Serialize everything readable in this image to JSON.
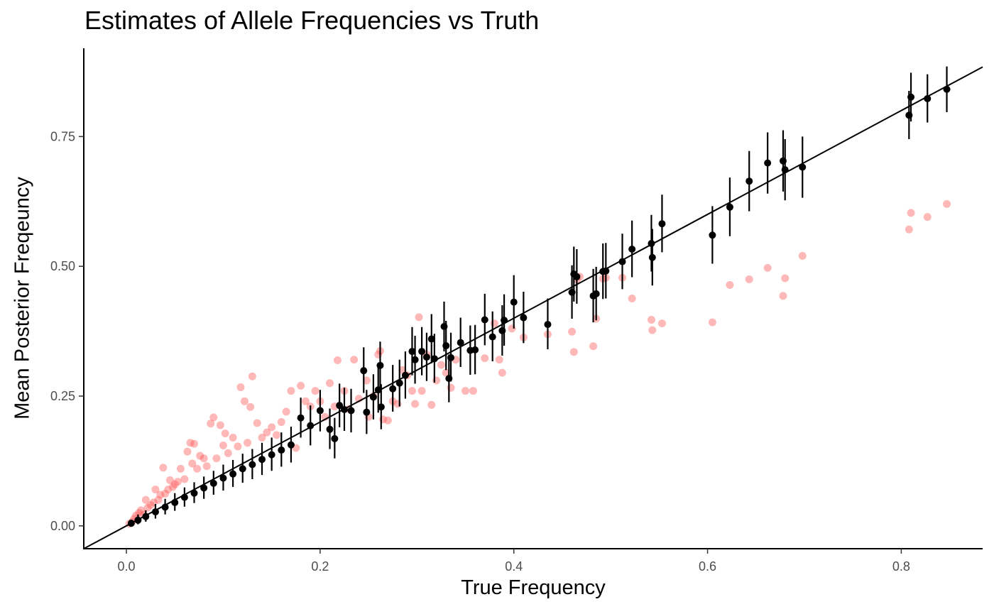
{
  "chart_data": {
    "type": "scatter",
    "title": "Estimates of Allele Frequencies vs Truth",
    "xlabel": "True Frequency",
    "ylabel": "Mean Posterior Freqeuncy",
    "xlim": [
      -0.044,
      0.884
    ],
    "ylim": [
      -0.044,
      0.92
    ],
    "x_ticks": [
      "0.0",
      "0.2",
      "0.4",
      "0.6",
      "0.8"
    ],
    "y_ticks": [
      "0.00",
      "0.25",
      "0.50",
      "0.75"
    ],
    "grid": false,
    "legend": "none",
    "reference_line": {
      "type": "identity",
      "slope": 1,
      "intercept": 0,
      "color": "#000000"
    },
    "colors": {
      "posterior_mean": "#000000",
      "naive_estimate": "#ff4d4d"
    },
    "series": [
      {
        "role": "posterior_mean_with_interval",
        "color": "#000000",
        "points": [
          [
            0.005,
            0.005,
            0.0,
            0.012
          ],
          [
            0.012,
            0.011,
            0.003,
            0.022
          ],
          [
            0.02,
            0.018,
            0.008,
            0.03
          ],
          [
            0.03,
            0.027,
            0.014,
            0.042
          ],
          [
            0.04,
            0.036,
            0.022,
            0.052
          ],
          [
            0.05,
            0.045,
            0.029,
            0.063
          ],
          [
            0.06,
            0.055,
            0.037,
            0.074
          ],
          [
            0.07,
            0.063,
            0.044,
            0.084
          ],
          [
            0.08,
            0.073,
            0.052,
            0.095
          ],
          [
            0.09,
            0.082,
            0.06,
            0.106
          ],
          [
            0.1,
            0.092,
            0.068,
            0.118
          ],
          [
            0.11,
            0.1,
            0.075,
            0.127
          ],
          [
            0.12,
            0.11,
            0.083,
            0.139
          ],
          [
            0.13,
            0.118,
            0.09,
            0.148
          ],
          [
            0.14,
            0.128,
            0.098,
            0.16
          ],
          [
            0.15,
            0.137,
            0.106,
            0.17
          ],
          [
            0.16,
            0.146,
            0.114,
            0.18
          ],
          [
            0.17,
            0.156,
            0.122,
            0.191
          ],
          [
            0.18,
            0.208,
            0.17,
            0.247
          ],
          [
            0.19,
            0.193,
            0.155,
            0.232
          ],
          [
            0.2,
            0.222,
            0.182,
            0.262
          ],
          [
            0.21,
            0.186,
            0.148,
            0.226
          ],
          [
            0.215,
            0.168,
            0.13,
            0.208
          ],
          [
            0.22,
            0.232,
            0.19,
            0.274
          ],
          [
            0.225,
            0.224,
            0.183,
            0.266
          ],
          [
            0.232,
            0.222,
            0.18,
            0.264
          ],
          [
            0.245,
            0.299,
            0.256,
            0.344
          ],
          [
            0.248,
            0.219,
            0.177,
            0.262
          ],
          [
            0.255,
            0.248,
            0.205,
            0.292
          ],
          [
            0.26,
            0.262,
            0.218,
            0.306
          ],
          [
            0.262,
            0.309,
            0.264,
            0.355
          ],
          [
            0.263,
            0.229,
            0.186,
            0.273
          ],
          [
            0.275,
            0.264,
            0.22,
            0.31
          ],
          [
            0.282,
            0.275,
            0.23,
            0.32
          ],
          [
            0.288,
            0.29,
            0.245,
            0.336
          ],
          [
            0.295,
            0.336,
            0.29,
            0.383
          ],
          [
            0.298,
            0.32,
            0.274,
            0.366
          ],
          [
            0.305,
            0.336,
            0.29,
            0.383
          ],
          [
            0.31,
            0.325,
            0.279,
            0.372
          ],
          [
            0.315,
            0.36,
            0.313,
            0.408
          ],
          [
            0.318,
            0.322,
            0.276,
            0.37
          ],
          [
            0.328,
            0.384,
            0.336,
            0.432
          ],
          [
            0.33,
            0.347,
            0.3,
            0.395
          ],
          [
            0.333,
            0.284,
            0.238,
            0.33
          ],
          [
            0.335,
            0.324,
            0.278,
            0.372
          ],
          [
            0.345,
            0.353,
            0.306,
            0.401
          ],
          [
            0.355,
            0.338,
            0.291,
            0.386
          ],
          [
            0.36,
            0.339,
            0.292,
            0.387
          ],
          [
            0.37,
            0.397,
            0.348,
            0.447
          ],
          [
            0.378,
            0.364,
            0.317,
            0.413
          ],
          [
            0.388,
            0.376,
            0.328,
            0.425
          ],
          [
            0.39,
            0.396,
            0.347,
            0.446
          ],
          [
            0.4,
            0.431,
            0.38,
            0.483
          ],
          [
            0.41,
            0.401,
            0.352,
            0.451
          ],
          [
            0.435,
            0.388,
            0.34,
            0.438
          ],
          [
            0.46,
            0.45,
            0.399,
            0.502
          ],
          [
            0.462,
            0.485,
            0.432,
            0.538
          ],
          [
            0.465,
            0.48,
            0.428,
            0.533
          ],
          [
            0.482,
            0.443,
            0.392,
            0.495
          ],
          [
            0.485,
            0.447,
            0.396,
            0.499
          ],
          [
            0.492,
            0.49,
            0.437,
            0.544
          ],
          [
            0.495,
            0.491,
            0.438,
            0.545
          ],
          [
            0.512,
            0.509,
            0.456,
            0.563
          ],
          [
            0.522,
            0.533,
            0.479,
            0.588
          ],
          [
            0.542,
            0.544,
            0.49,
            0.599
          ],
          [
            0.543,
            0.517,
            0.463,
            0.572
          ],
          [
            0.553,
            0.582,
            0.527,
            0.638
          ],
          [
            0.605,
            0.56,
            0.505,
            0.616
          ],
          [
            0.623,
            0.614,
            0.558,
            0.671
          ],
          [
            0.643,
            0.664,
            0.606,
            0.722
          ],
          [
            0.662,
            0.699,
            0.64,
            0.758
          ],
          [
            0.678,
            0.703,
            0.644,
            0.762
          ],
          [
            0.68,
            0.686,
            0.627,
            0.745
          ],
          [
            0.698,
            0.691,
            0.632,
            0.75
          ],
          [
            0.808,
            0.791,
            0.745,
            0.838
          ],
          [
            0.81,
            0.826,
            0.779,
            0.873
          ],
          [
            0.827,
            0.823,
            0.777,
            0.87
          ],
          [
            0.847,
            0.841,
            0.797,
            0.885
          ]
        ]
      },
      {
        "role": "naive_estimate",
        "color": "#ff4d4d",
        "opacity": 0.4,
        "points": [
          [
            0.003,
            0.004
          ],
          [
            0.006,
            0.008
          ],
          [
            0.008,
            0.014
          ],
          [
            0.01,
            0.02
          ],
          [
            0.013,
            0.025
          ],
          [
            0.015,
            0.03
          ],
          [
            0.018,
            0.022
          ],
          [
            0.02,
            0.05
          ],
          [
            0.022,
            0.035
          ],
          [
            0.025,
            0.04
          ],
          [
            0.028,
            0.045
          ],
          [
            0.03,
            0.07
          ],
          [
            0.033,
            0.05
          ],
          [
            0.035,
            0.06
          ],
          [
            0.038,
            0.112
          ],
          [
            0.04,
            0.062
          ],
          [
            0.043,
            0.07
          ],
          [
            0.045,
            0.088
          ],
          [
            0.048,
            0.075
          ],
          [
            0.05,
            0.08
          ],
          [
            0.053,
            0.085
          ],
          [
            0.056,
            0.11
          ],
          [
            0.06,
            0.09
          ],
          [
            0.063,
            0.143
          ],
          [
            0.066,
            0.16
          ],
          [
            0.068,
            0.12
          ],
          [
            0.07,
            0.158
          ],
          [
            0.073,
            0.11
          ],
          [
            0.076,
            0.135
          ],
          [
            0.08,
            0.13
          ],
          [
            0.083,
            0.115
          ],
          [
            0.087,
            0.197
          ],
          [
            0.09,
            0.209
          ],
          [
            0.093,
            0.13
          ],
          [
            0.097,
            0.194
          ],
          [
            0.1,
            0.155
          ],
          [
            0.102,
            0.178
          ],
          [
            0.105,
            0.14
          ],
          [
            0.11,
            0.17
          ],
          [
            0.115,
            0.153
          ],
          [
            0.118,
            0.267
          ],
          [
            0.122,
            0.24
          ],
          [
            0.125,
            0.16
          ],
          [
            0.128,
            0.229
          ],
          [
            0.13,
            0.288
          ],
          [
            0.135,
            0.198
          ],
          [
            0.14,
            0.17
          ],
          [
            0.145,
            0.18
          ],
          [
            0.15,
            0.19
          ],
          [
            0.155,
            0.175
          ],
          [
            0.16,
            0.2
          ],
          [
            0.165,
            0.22
          ],
          [
            0.17,
            0.26
          ],
          [
            0.175,
            0.15
          ],
          [
            0.18,
            0.27
          ],
          [
            0.185,
            0.24
          ],
          [
            0.19,
            0.23
          ],
          [
            0.195,
            0.26
          ],
          [
            0.2,
            0.24
          ],
          [
            0.205,
            0.21
          ],
          [
            0.21,
            0.275
          ],
          [
            0.215,
            0.23
          ],
          [
            0.218,
            0.319
          ],
          [
            0.225,
            0.26
          ],
          [
            0.23,
            0.225
          ],
          [
            0.235,
            0.32
          ],
          [
            0.24,
            0.245
          ],
          [
            0.248,
            0.28
          ],
          [
            0.25,
            0.21
          ],
          [
            0.255,
            0.25
          ],
          [
            0.26,
            0.33
          ],
          [
            0.262,
            0.337
          ],
          [
            0.265,
            0.205
          ],
          [
            0.27,
            0.203
          ],
          [
            0.275,
            0.24
          ],
          [
            0.28,
            0.235
          ],
          [
            0.285,
            0.3
          ],
          [
            0.29,
            0.29
          ],
          [
            0.295,
            0.26
          ],
          [
            0.298,
            0.235
          ],
          [
            0.302,
            0.402
          ],
          [
            0.305,
            0.26
          ],
          [
            0.31,
            0.33
          ],
          [
            0.315,
            0.233
          ],
          [
            0.32,
            0.28
          ],
          [
            0.325,
            0.31
          ],
          [
            0.33,
            0.295
          ],
          [
            0.335,
            0.266
          ],
          [
            0.34,
            0.32
          ],
          [
            0.35,
            0.26
          ],
          [
            0.358,
            0.26
          ],
          [
            0.37,
            0.323
          ],
          [
            0.38,
            0.39
          ],
          [
            0.385,
            0.32
          ],
          [
            0.388,
            0.295
          ],
          [
            0.398,
            0.38
          ],
          [
            0.41,
            0.363
          ],
          [
            0.435,
            0.369
          ],
          [
            0.46,
            0.374
          ],
          [
            0.462,
            0.335
          ],
          [
            0.465,
            0.475
          ],
          [
            0.468,
            0.48
          ],
          [
            0.482,
            0.346
          ],
          [
            0.485,
            0.399
          ],
          [
            0.492,
            0.476
          ],
          [
            0.495,
            0.478
          ],
          [
            0.512,
            0.478
          ],
          [
            0.522,
            0.438
          ],
          [
            0.542,
            0.397
          ],
          [
            0.543,
            0.377
          ],
          [
            0.553,
            0.39
          ],
          [
            0.605,
            0.392
          ],
          [
            0.623,
            0.464
          ],
          [
            0.643,
            0.475
          ],
          [
            0.662,
            0.497
          ],
          [
            0.678,
            0.443
          ],
          [
            0.68,
            0.477
          ],
          [
            0.698,
            0.52
          ],
          [
            0.808,
            0.571
          ],
          [
            0.81,
            0.603
          ],
          [
            0.827,
            0.595
          ],
          [
            0.847,
            0.62
          ]
        ]
      }
    ]
  }
}
